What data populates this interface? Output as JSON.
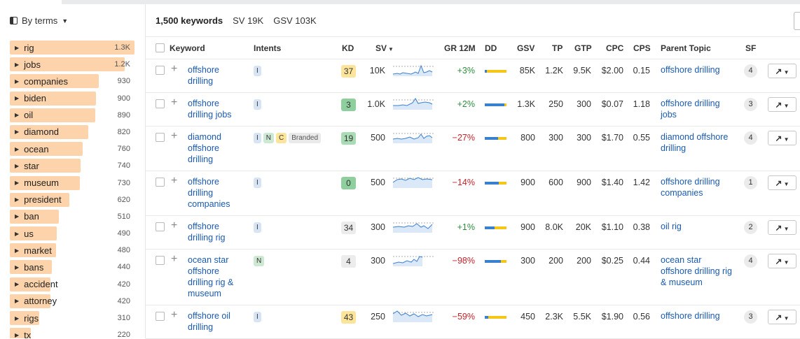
{
  "sidebar": {
    "mode_label": "By terms",
    "terms": [
      {
        "name": "rig",
        "count": "1.3K"
      },
      {
        "name": "jobs",
        "count": "1.2K"
      },
      {
        "name": "companies",
        "count": "930"
      },
      {
        "name": "biden",
        "count": "900"
      },
      {
        "name": "oil",
        "count": "890"
      },
      {
        "name": "diamond",
        "count": "820"
      },
      {
        "name": "ocean",
        "count": "760"
      },
      {
        "name": "star",
        "count": "740"
      },
      {
        "name": "museum",
        "count": "730"
      },
      {
        "name": "president",
        "count": "620"
      },
      {
        "name": "ban",
        "count": "510"
      },
      {
        "name": "us",
        "count": "490"
      },
      {
        "name": "market",
        "count": "480"
      },
      {
        "name": "bans",
        "count": "440"
      },
      {
        "name": "accident",
        "count": "420"
      },
      {
        "name": "attorney",
        "count": "420"
      },
      {
        "name": "rigs",
        "count": "310"
      },
      {
        "name": "tx",
        "count": "220"
      }
    ]
  },
  "summary": {
    "keywords": "1,500 keywords",
    "sv": "SV 19K",
    "gsv": "GSV 103K"
  },
  "columns": {
    "keyword": "Keyword",
    "intents": "Intents",
    "kd": "KD",
    "sv": "SV",
    "gr": "GR 12M",
    "dd": "DD",
    "gsv": "GSV",
    "tp": "TP",
    "gtp": "GTP",
    "cpc": "CPC",
    "cps": "CPS",
    "parent": "Parent Topic",
    "sf": "SF"
  },
  "colors": {
    "dd_blue": "#3b7fd0",
    "dd_yellow": "#f5c518",
    "link": "#1a5ab0",
    "positive": "#2e8b3f",
    "negative": "#c0232c"
  },
  "rows": [
    {
      "keyword": [
        "offshore",
        "drilling"
      ],
      "intents": [
        "I"
      ],
      "kd": "37",
      "kd_color": "#fce49b",
      "sv": "10K",
      "gr": "+3%",
      "dd": 0.1,
      "gsv": "85K",
      "tp": "1.2K",
      "gtp": "9.5K",
      "cpc": "$2.00",
      "cps": "0.15",
      "parent": [
        "offshore drilling"
      ],
      "sf": "4",
      "trend_icon": "line-chart-icon"
    },
    {
      "keyword": [
        "offshore",
        "drilling jobs"
      ],
      "intents": [
        "I"
      ],
      "kd": "3",
      "kd_color": "#8fcf9e",
      "sv": "1.0K",
      "gr": "+2%",
      "dd": 0.9,
      "gsv": "1.3K",
      "tp": "250",
      "gtp": "300",
      "cpc": "$0.07",
      "cps": "1.18",
      "parent": [
        "offshore drilling",
        "jobs"
      ],
      "sf": "3",
      "trend_icon": "line-chart-icon"
    },
    {
      "keyword": [
        "diamond",
        "offshore",
        "drilling"
      ],
      "intents": [
        "I",
        "N",
        "C",
        "Branded"
      ],
      "kd": "19",
      "kd_color": "#a9dbb4",
      "sv": "500",
      "gr": "−27%",
      "dd": 0.6,
      "gsv": "800",
      "tp": "300",
      "gtp": "300",
      "cpc": "$1.70",
      "cps": "0.55",
      "parent": [
        "diamond offshore",
        "drilling"
      ],
      "sf": "4",
      "trend_icon": "line-chart-icon"
    },
    {
      "keyword": [
        "offshore",
        "drilling",
        "companies"
      ],
      "intents": [
        "I"
      ],
      "kd": "0",
      "kd_color": "#8fcf9e",
      "sv": "500",
      "gr": "−14%",
      "dd": 0.65,
      "gsv": "900",
      "tp": "600",
      "gtp": "900",
      "cpc": "$1.40",
      "cps": "1.42",
      "parent": [
        "offshore drilling",
        "companies"
      ],
      "sf": "1",
      "trend_icon": "line-chart-icon"
    },
    {
      "keyword": [
        "offshore",
        "drilling rig"
      ],
      "intents": [
        "I"
      ],
      "kd": "34",
      "kd_color": "#ececec",
      "sv": "300",
      "gr": "+1%",
      "dd": 0.45,
      "gsv": "900",
      "tp": "8.0K",
      "gtp": "20K",
      "cpc": "$1.10",
      "cps": "0.38",
      "parent": [
        "oil rig"
      ],
      "sf": "2",
      "trend_icon": "line-chart-icon"
    },
    {
      "keyword": [
        "ocean star",
        "offshore",
        "drilling rig &",
        "museum"
      ],
      "intents": [
        "N"
      ],
      "kd": "4",
      "kd_color": "#ececec",
      "sv": "300",
      "gr": "−98%",
      "dd": 0.75,
      "gsv": "300",
      "tp": "200",
      "gtp": "200",
      "cpc": "$0.25",
      "cps": "0.44",
      "parent": [
        "ocean star",
        "offshore drilling rig",
        "& museum"
      ],
      "sf": "4",
      "trend_icon": "line-chart-icon"
    },
    {
      "keyword": [
        "offshore oil",
        "drilling"
      ],
      "intents": [
        "I"
      ],
      "kd": "43",
      "kd_color": "#fce49b",
      "sv": "250",
      "gr": "−59%",
      "dd": 0.15,
      "gsv": "450",
      "tp": "2.3K",
      "gtp": "5.5K",
      "cpc": "$1.90",
      "cps": "0.56",
      "parent": [
        "offshore drilling"
      ],
      "sf": "3",
      "trend_icon": "line-chart-icon"
    }
  ]
}
